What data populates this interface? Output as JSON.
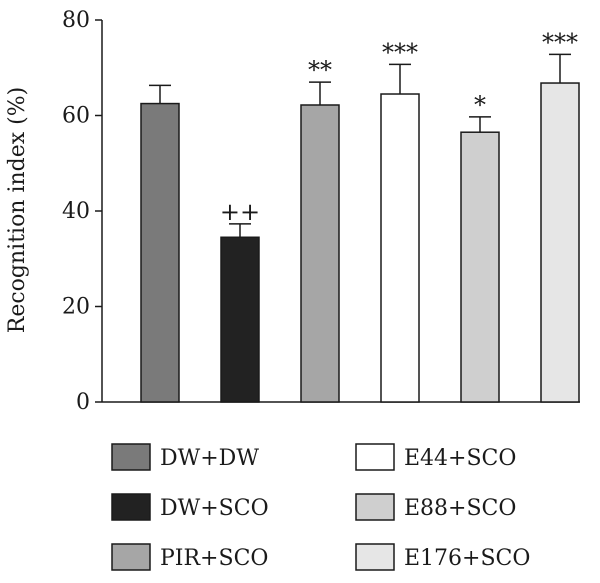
{
  "chart_data": {
    "type": "bar",
    "ylabel": "Recognition index (%)",
    "xlabel": "",
    "ylim": [
      0,
      80
    ],
    "yticks": [
      0,
      20,
      40,
      60,
      80
    ],
    "grid": false,
    "legend_position": "bottom",
    "categories": [
      "DW+DW",
      "DW+SCO",
      "PIR+SCO",
      "E44+SCO",
      "E88+SCO",
      "E176+SCO"
    ],
    "values": [
      62.5,
      34.5,
      62.2,
      64.5,
      56.5,
      66.8
    ],
    "errors": [
      3.8,
      2.8,
      4.8,
      6.2,
      3.2,
      6.0
    ],
    "significance": [
      "",
      "++",
      "**",
      "***",
      "*",
      "***"
    ],
    "colors": [
      "#7a7a7a",
      "#222222",
      "#a6a6a6",
      "#ffffff",
      "#cfcfcf",
      "#e6e6e6"
    ]
  }
}
